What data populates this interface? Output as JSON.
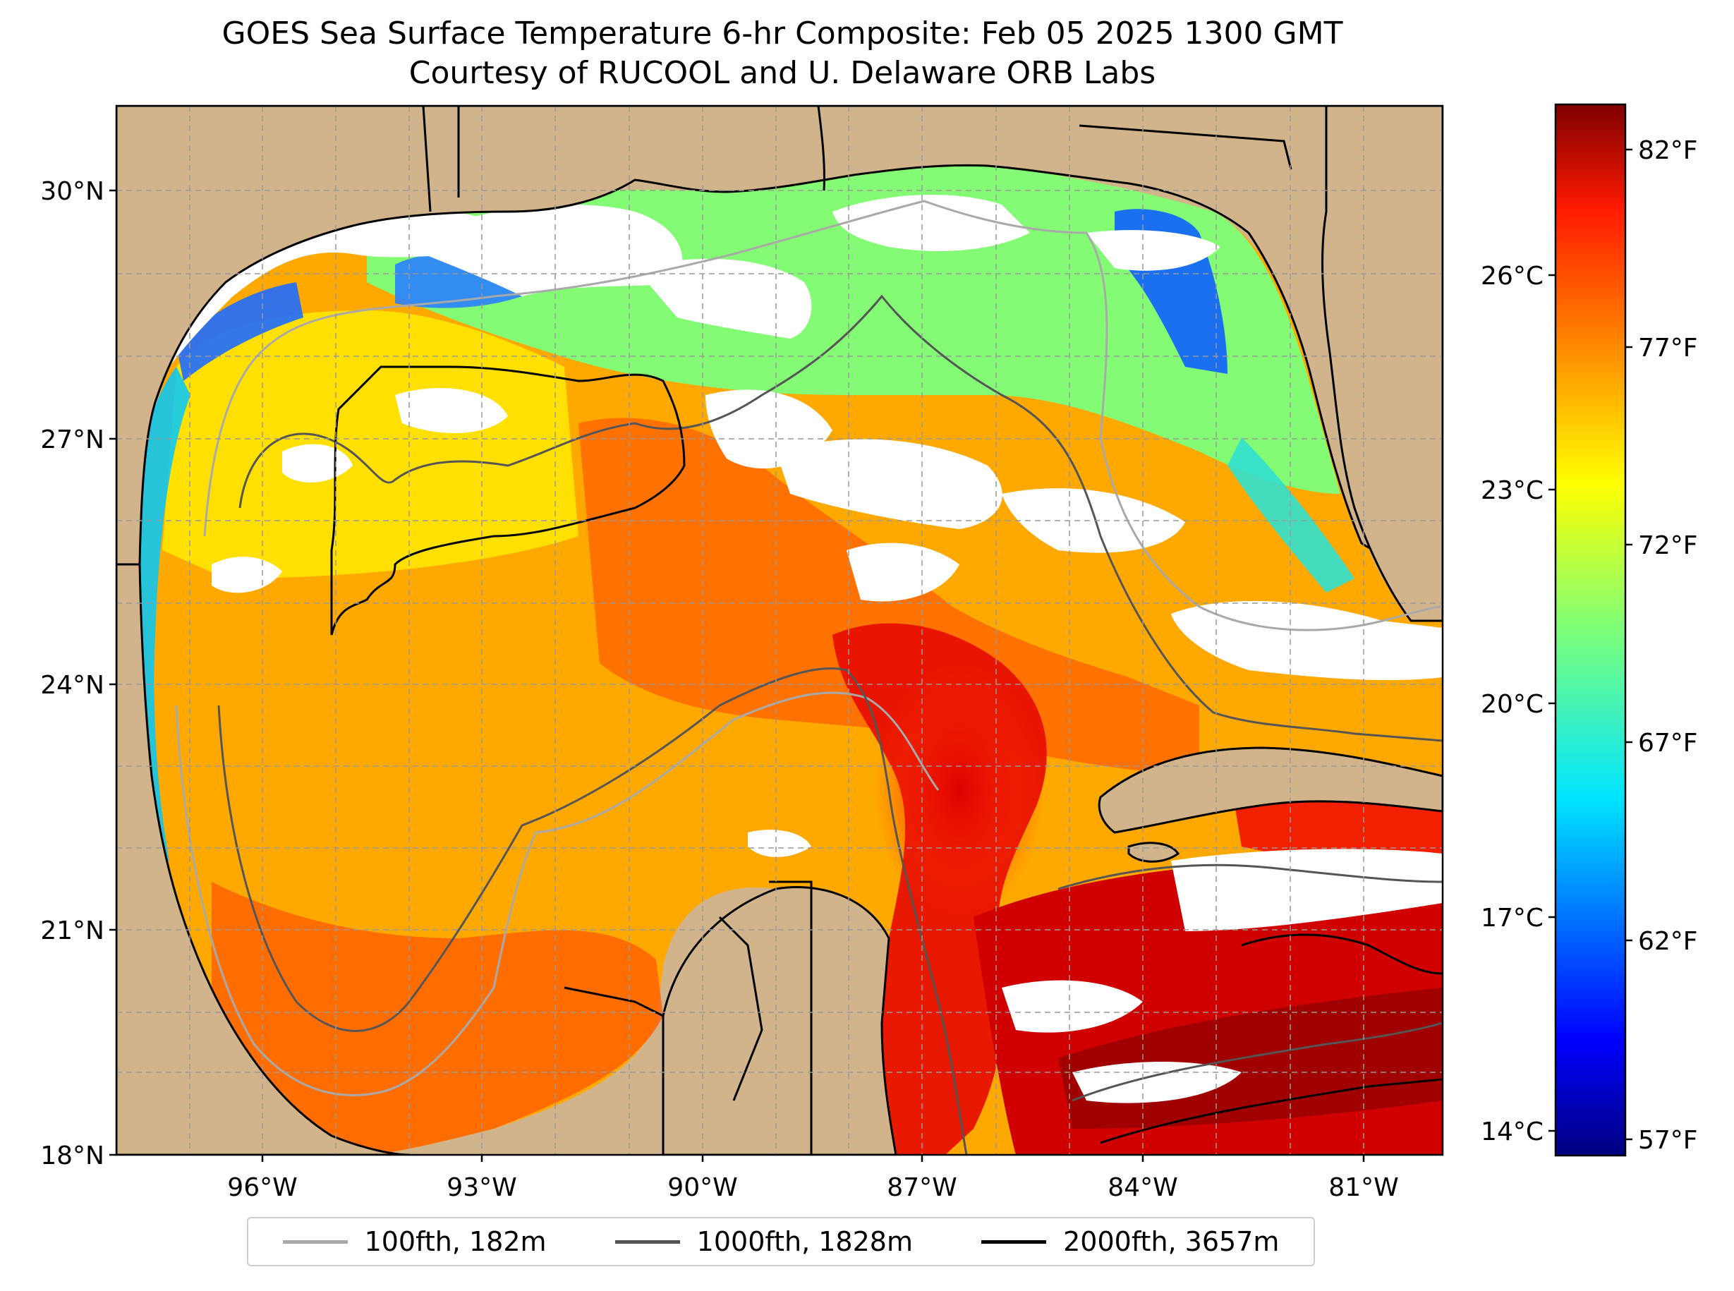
{
  "title": {
    "line1": "GOES Sea Surface Temperature 6-hr Composite: Feb 05 2025 1300 GMT",
    "line2": "Courtesy of RUCOOL and U. Delaware ORB Labs"
  },
  "map": {
    "lat_labels": [
      "30°N",
      "27°N",
      "24°N",
      "21°N",
      "18°N"
    ],
    "lon_labels": [
      "96°W",
      "93°W",
      "90°W",
      "87°W",
      "84°W",
      "81°W"
    ],
    "land_color": "#d2b48c",
    "cloud_color": "#ffffff",
    "grid": "dashed"
  },
  "colorbar": {
    "colormap": "jet",
    "celsius_ticks": [
      "26°C",
      "23°C",
      "20°C",
      "17°C",
      "14°C"
    ],
    "fahrenheit_ticks": [
      "82°F",
      "77°F",
      "72°F",
      "67°F",
      "62°F",
      "57°F"
    ]
  },
  "legend": {
    "items": [
      {
        "label": "100fth, 182m",
        "color": "#a9a9a9"
      },
      {
        "label": "1000fth, 1828m",
        "color": "#555555"
      },
      {
        "label": "2000fth, 3657m",
        "color": "#000000"
      }
    ]
  }
}
